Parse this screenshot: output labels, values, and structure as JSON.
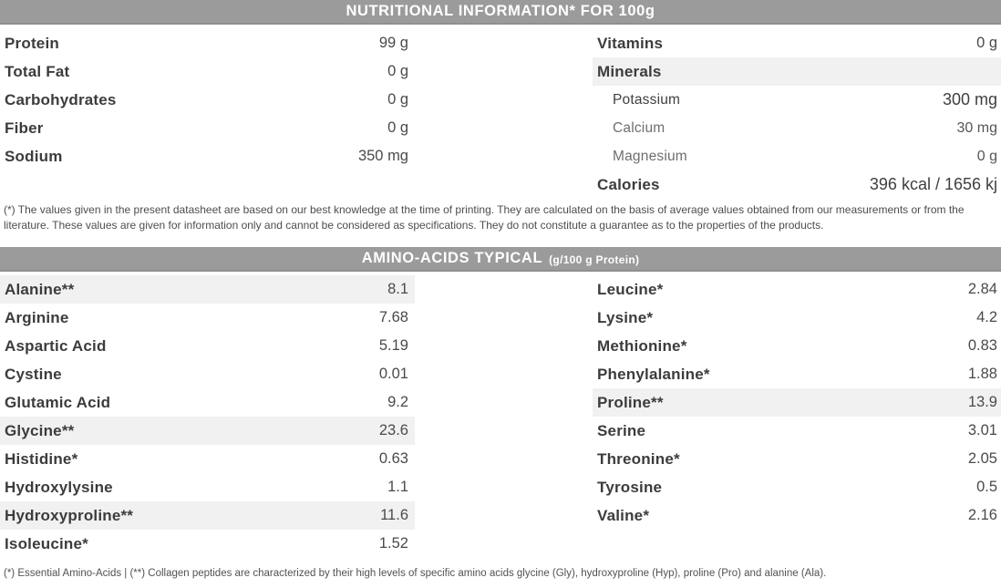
{
  "colors": {
    "header_bg": "#9b9b9b",
    "header_text": "#ffffff",
    "stripe_bg": "#f1f1f1",
    "text_dark": "#3c3c3c",
    "text_light": "#6e6e6e"
  },
  "nutrition": {
    "title": "NUTRITIONAL INFORMATION* FOR 100g",
    "left_rows": [
      {
        "label": "Protein",
        "value": "99 g"
      },
      {
        "label": "Total Fat",
        "value": "0 g"
      },
      {
        "label": "Carbohydrates",
        "value": "0 g"
      },
      {
        "label": "Fiber",
        "value": "0 g"
      },
      {
        "label": "Sodium",
        "value": "350 mg"
      }
    ],
    "right_rows": [
      {
        "label": "Vitamins",
        "value": "0 g",
        "style": "bold",
        "highlight": false
      },
      {
        "label": "Minerals",
        "value": "",
        "style": "bold",
        "highlight": true
      },
      {
        "label": "Potassium",
        "value": "300 mg",
        "style": "sub-dark",
        "highlight": false
      },
      {
        "label": "Calcium",
        "value": "30 mg",
        "style": "sub-light",
        "highlight": false
      },
      {
        "label": "Magnesium",
        "value": "0 g",
        "style": "sub-light",
        "highlight": false
      },
      {
        "label": "Calories",
        "value": "396 kcal / 1656 kj",
        "style": "bold",
        "highlight": false
      }
    ],
    "footnote": "(*) The values given in the present datasheet are based on our best knowledge at the time of printing. They are calculated on the basis of average values obtained from our measurements or from the literature. These values are given for information only and cannot be considered as specifications. They do not constitute a guarantee as to the properties of the products."
  },
  "amino": {
    "title": "AMINO-ACIDS TYPICAL",
    "title_unit": "(g/100 g Protein)",
    "left_rows": [
      {
        "label": "Alanine**",
        "value": "8.1",
        "highlight": true
      },
      {
        "label": "Arginine",
        "value": "7.68",
        "highlight": false
      },
      {
        "label": "Aspartic Acid",
        "value": "5.19",
        "highlight": false
      },
      {
        "label": "Cystine",
        "value": "0.01",
        "highlight": false
      },
      {
        "label": "Glutamic Acid",
        "value": "9.2",
        "highlight": false
      },
      {
        "label": "Glycine**",
        "value": "23.6",
        "highlight": true
      },
      {
        "label": "Histidine*",
        "value": "0.63",
        "highlight": false
      },
      {
        "label": "Hydroxylysine",
        "value": "1.1",
        "highlight": false
      },
      {
        "label": "Hydroxyproline**",
        "value": "11.6",
        "highlight": true
      },
      {
        "label": "Isoleucine*",
        "value": "1.52",
        "highlight": false
      }
    ],
    "right_rows": [
      {
        "label": "Leucine*",
        "value": "2.84",
        "highlight": false
      },
      {
        "label": "Lysine*",
        "value": "4.2",
        "highlight": false
      },
      {
        "label": "Methionine*",
        "value": "0.83",
        "highlight": false
      },
      {
        "label": "Phenylalanine*",
        "value": "1.88",
        "highlight": false
      },
      {
        "label": "Proline**",
        "value": "13.9",
        "highlight": true
      },
      {
        "label": "Serine",
        "value": "3.01",
        "highlight": false
      },
      {
        "label": "Threonine*",
        "value": "2.05",
        "highlight": false
      },
      {
        "label": "Tyrosine",
        "value": "0.5",
        "highlight": false
      },
      {
        "label": "Valine*",
        "value": "2.16",
        "highlight": false
      }
    ],
    "footnote": "(*) Essential Amino-Acids | (**) Collagen peptides are characterized by their high levels of specific amino acids glycine (Gly), hydroxyproline (Hyp), proline (Pro) and alanine (Ala)."
  }
}
